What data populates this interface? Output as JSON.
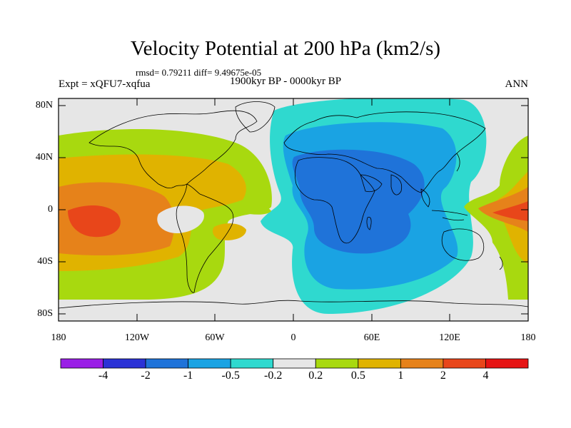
{
  "title": "Velocity Potential at 200 hPa (km2/s)",
  "stats": "rmsd= 0.79211 diff= 9.49675e-05",
  "period": "1900kyr BP - 0000kyr BP",
  "experiment": "Expt = xQFU7-xqfua",
  "season": "ANN",
  "y_ticks": [
    "80N",
    "40N",
    "0",
    "40S",
    "80S"
  ],
  "x_ticks": [
    "180",
    "120W",
    "60W",
    "0",
    "60E",
    "120E",
    "180"
  ],
  "colorbar": {
    "colors": [
      "#9a1fe6",
      "#2b32d6",
      "#1f73d9",
      "#1aa3e3",
      "#2fd9cf",
      "#e6e6e6",
      "#a8d90f",
      "#e0b300",
      "#e6821a",
      "#e8461a",
      "#e61414"
    ],
    "labels": [
      "-4",
      "-2",
      "-1",
      "-0.5",
      "-0.2",
      "0.2",
      "0.5",
      "1",
      "2",
      "4"
    ]
  },
  "fields": {
    "background": "#e6e6e6",
    "negative_bands": [
      "#2fd9cf",
      "#1aa3e3",
      "#1f73d9"
    ],
    "positive_bands": [
      "#a8d90f",
      "#e0b300",
      "#e6821a",
      "#e8461a"
    ]
  }
}
